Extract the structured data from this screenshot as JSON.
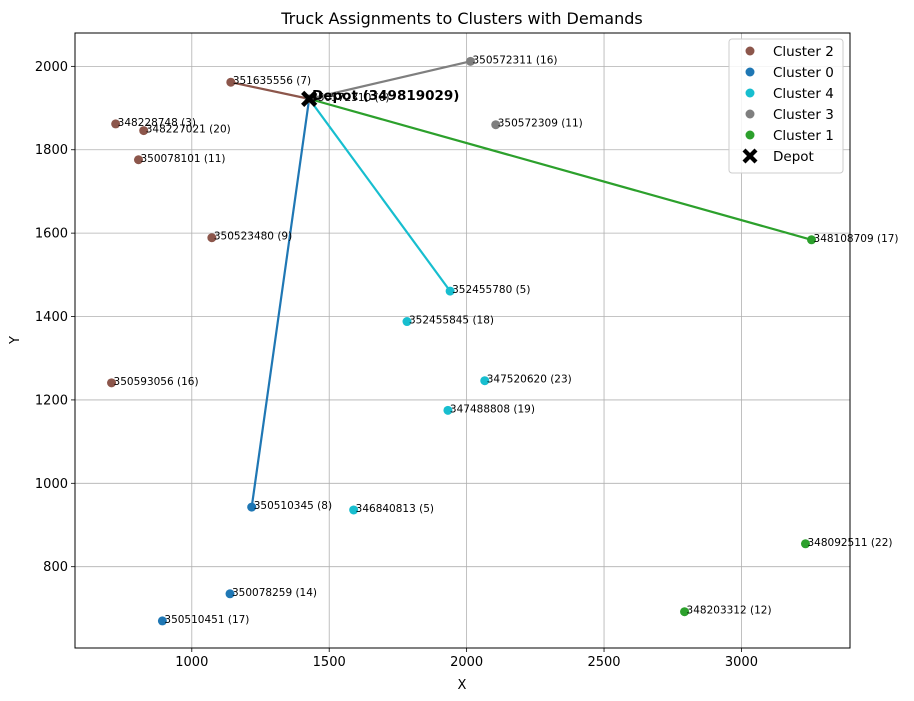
{
  "chart_data": {
    "type": "scatter",
    "title": "Truck Assignments to Clusters with Demands",
    "xlabel": "X",
    "ylabel": "Y",
    "xlim": [
      575,
      3395
    ],
    "ylim": [
      605,
      2080
    ],
    "xticks": [
      1000,
      1500,
      2000,
      2500,
      3000
    ],
    "yticks": [
      800,
      1000,
      1200,
      1400,
      1600,
      1800,
      2000
    ],
    "grid": true,
    "legend_position": "top-right",
    "depot": {
      "name": "Depot",
      "label": "Depot (349819029)",
      "x": 1427,
      "y": 1922,
      "color": "#000000",
      "marker": "X"
    },
    "series": [
      {
        "name": "Cluster 2",
        "color": "#8c564b",
        "route": [
          [
            1427,
            1922
          ],
          [
            1142,
            1962
          ]
        ],
        "points": [
          {
            "x": 1142,
            "y": 1962,
            "label": "351635556 (7)"
          },
          {
            "x": 723,
            "y": 1862,
            "label": "348228748 (3)"
          },
          {
            "x": 825,
            "y": 1846,
            "label": "348227021 (20)"
          },
          {
            "x": 806,
            "y": 1776,
            "label": "350078101 (11)"
          },
          {
            "x": 1073,
            "y": 1589,
            "label": "350523480 (9)"
          },
          {
            "x": 708,
            "y": 1241,
            "label": "350593056 (16)"
          }
        ]
      },
      {
        "name": "Cluster 0",
        "color": "#1f77b4",
        "route": [
          [
            1427,
            1922
          ],
          [
            1218,
            943
          ]
        ],
        "points": [
          {
            "x": 1218,
            "y": 943,
            "label": "350510345 (8)"
          },
          {
            "x": 1139,
            "y": 735,
            "label": "350078259 (14)"
          },
          {
            "x": 893,
            "y": 670,
            "label": "350510451 (17)"
          }
        ]
      },
      {
        "name": "Cluster 4",
        "color": "#17becf",
        "route": [
          [
            1427,
            1922
          ],
          [
            1940,
            1461
          ]
        ],
        "points": [
          {
            "x": 1940,
            "y": 1461,
            "label": "352455780 (5)"
          },
          {
            "x": 1783,
            "y": 1388,
            "label": "352455845 (18)"
          },
          {
            "x": 2066,
            "y": 1246,
            "label": "347520620 (23)"
          },
          {
            "x": 1932,
            "y": 1175,
            "label": "347488808 (19)"
          },
          {
            "x": 1589,
            "y": 936,
            "label": "346840813 (5)"
          }
        ]
      },
      {
        "name": "Cluster 3",
        "color": "#7f7f7f",
        "route": [
          [
            1427,
            1922
          ],
          [
            2014,
            2012
          ]
        ],
        "points": [
          {
            "x": 2014,
            "y": 2012,
            "label": "350572311 (16)"
          },
          {
            "x": 2106,
            "y": 1860,
            "label": "350572309 (11)"
          },
          {
            "x": 1427,
            "y": 1922,
            "label": "350572310 (6)"
          }
        ]
      },
      {
        "name": "Cluster 1",
        "color": "#2ca02c",
        "route": [
          [
            1427,
            1922
          ],
          [
            3255,
            1584
          ]
        ],
        "points": [
          {
            "x": 3255,
            "y": 1584,
            "label": "348108709 (17)"
          },
          {
            "x": 3233,
            "y": 855,
            "label": "348092511 (22)"
          },
          {
            "x": 2793,
            "y": 692,
            "label": "348203312 (12)"
          }
        ]
      }
    ]
  }
}
